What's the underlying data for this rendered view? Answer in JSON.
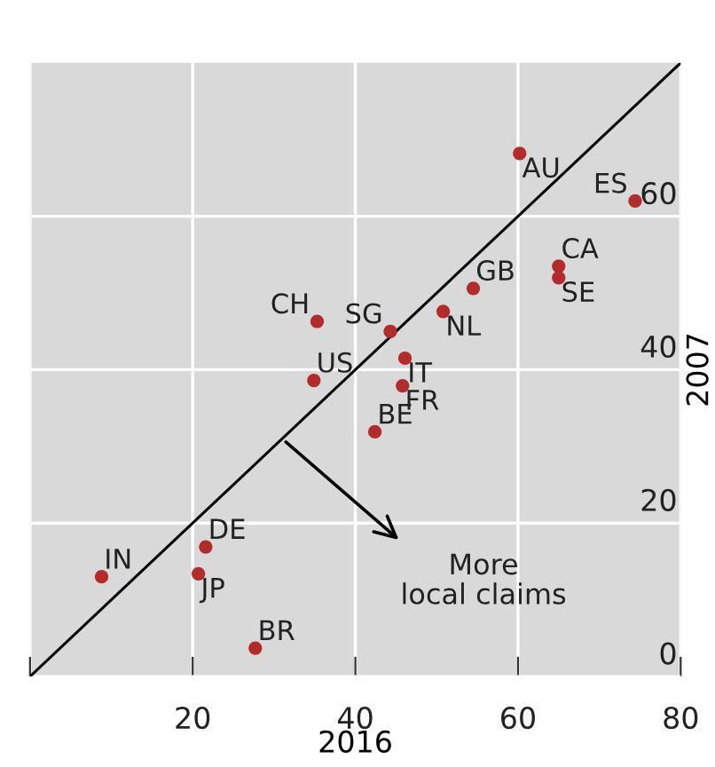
{
  "chart_data": {
    "type": "scatter",
    "xlabel": "2016",
    "ylabel": "2007",
    "xlim": [
      0,
      80
    ],
    "ylim": [
      0,
      80
    ],
    "xticks": [
      {
        "value": 0,
        "label": null
      },
      20,
      40,
      60,
      80
    ],
    "yticks": [
      0,
      20,
      40,
      60
    ],
    "grid": true,
    "marker": "circle",
    "series": [
      {
        "color": "#b22c2c",
        "x": [
          60.2,
          74.4,
          65.0,
          65.0,
          54.5,
          50.8,
          35.3,
          44.3,
          46.1,
          34.9,
          45.8,
          42.4,
          21.6,
          8.8,
          20.7,
          27.7
        ],
        "values": [
          68.2,
          62.0,
          53.5,
          52.0,
          50.6,
          47.6,
          46.3,
          45.0,
          41.5,
          38.6,
          37.9,
          31.9,
          16.9,
          13.0,
          13.4,
          3.7
        ]
      },
      {
        "type": "line",
        "color": "#000000",
        "marker": "none",
        "x": [
          0,
          80
        ],
        "values": [
          0,
          80
        ]
      }
    ],
    "annotations": [
      {
        "text": "AU",
        "x": 60.2,
        "y": 68.2
      },
      {
        "text": "ES",
        "x": 74.4,
        "y": 62.0
      },
      {
        "text": "CA",
        "x": 65.0,
        "y": 53.5
      },
      {
        "text": "SE",
        "x": 65.0,
        "y": 52.0
      },
      {
        "text": "GB",
        "x": 54.5,
        "y": 50.6
      },
      {
        "text": "NL",
        "x": 50.8,
        "y": 47.6
      },
      {
        "text": "CH",
        "x": 35.3,
        "y": 46.3
      },
      {
        "text": "SG",
        "x": 44.3,
        "y": 45.0
      },
      {
        "text": "IT",
        "x": 46.1,
        "y": 41.5
      },
      {
        "text": "US",
        "x": 34.9,
        "y": 38.6
      },
      {
        "text": "FR",
        "x": 45.8,
        "y": 37.9
      },
      {
        "text": "BE",
        "x": 42.4,
        "y": 31.9
      },
      {
        "text": "DE",
        "x": 21.6,
        "y": 16.9
      },
      {
        "text": "IN",
        "x": 8.8,
        "y": 13.0
      },
      {
        "text": "JP",
        "x": 20.7,
        "y": 13.4
      },
      {
        "text": "BR",
        "x": 27.7,
        "y": 3.7
      },
      "More\nlocal claims"
    ]
  }
}
